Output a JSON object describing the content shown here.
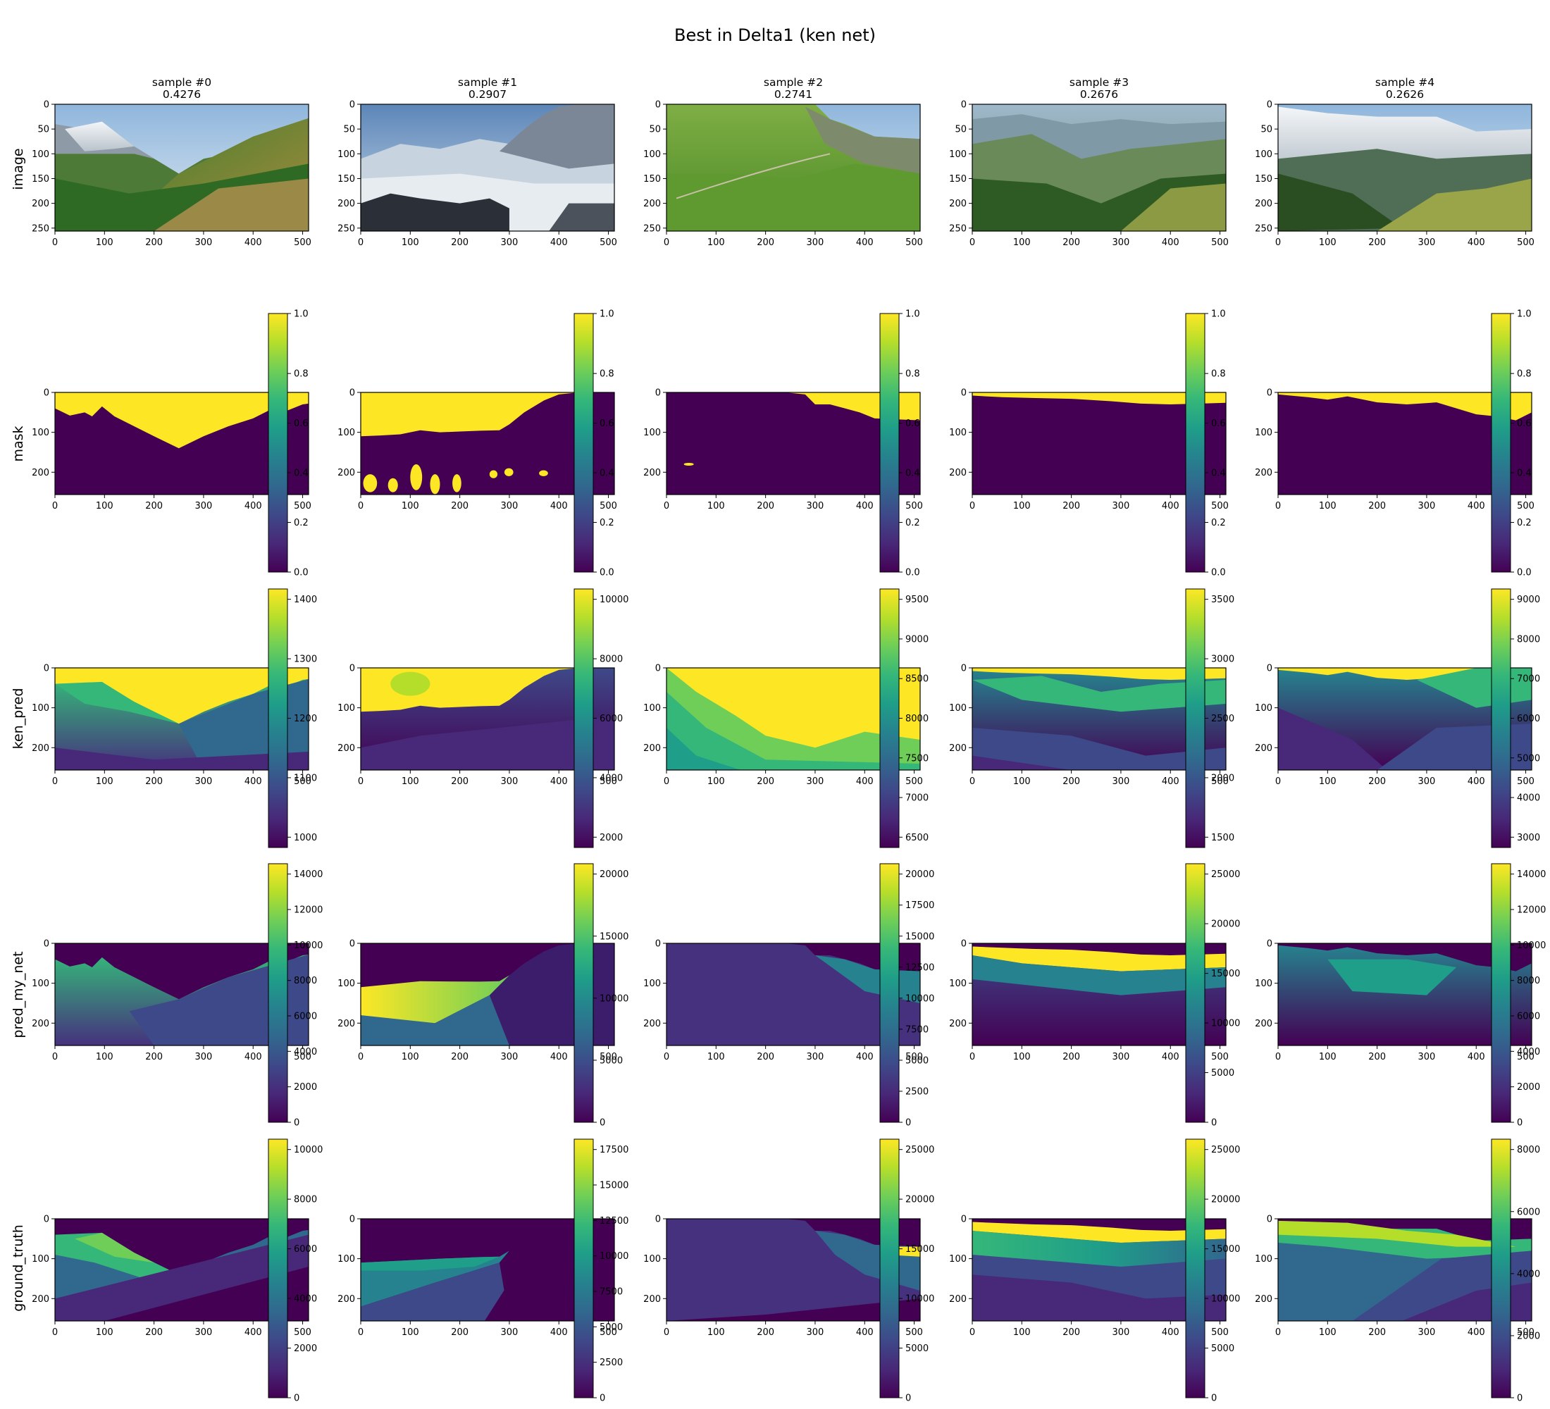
{
  "figure_title": "Best in Delta1 (ken net)",
  "colors": {
    "background": "#ffffff",
    "mask_zero": "#440154",
    "mask_one": "#fde725",
    "viridis": [
      "#440154",
      "#482878",
      "#3e4989",
      "#31688e",
      "#26828e",
      "#1f9e89",
      "#35b779",
      "#6ece58",
      "#b5de2b",
      "#fde725"
    ]
  },
  "chart_data": {
    "type": "heatmap",
    "columns": [
      {
        "title": "sample #0",
        "score": "0.4276"
      },
      {
        "title": "sample #1",
        "score": "0.2907"
      },
      {
        "title": "sample #2",
        "score": "0.2741"
      },
      {
        "title": "sample #3",
        "score": "0.2676"
      },
      {
        "title": "sample #4",
        "score": "0.2626"
      }
    ],
    "rows": [
      {
        "label": "image",
        "colorbar": false,
        "xticks": [
          0,
          100,
          200,
          300,
          400,
          500
        ],
        "yticks": [
          0,
          50,
          100,
          150,
          200,
          250
        ],
        "image_extent": {
          "x": [
            0,
            512
          ],
          "y": [
            0,
            256
          ]
        }
      },
      {
        "label": "mask",
        "colorbar": true,
        "xticks": [
          0,
          100,
          200,
          300,
          400,
          500
        ],
        "yticks": [
          0,
          100,
          200
        ],
        "image_extent": {
          "x": [
            0,
            512
          ],
          "y": [
            0,
            256
          ]
        },
        "color_ranges": [
          [
            0,
            1
          ],
          [
            0,
            1
          ],
          [
            0,
            1
          ],
          [
            0,
            1
          ],
          [
            0,
            1
          ]
        ],
        "colorbar_ticks": [
          [
            "0.0",
            "0.2",
            "0.4",
            "0.6",
            "0.8",
            "1.0"
          ],
          [
            "0.0",
            "0.2",
            "0.4",
            "0.6",
            "0.8",
            "1.0"
          ],
          [
            "0.0",
            "0.2",
            "0.4",
            "0.6",
            "0.8",
            "1.0"
          ],
          [
            "0.0",
            "0.2",
            "0.4",
            "0.6",
            "0.8",
            "1.0"
          ],
          [
            "0.0",
            "0.2",
            "0.4",
            "0.6",
            "0.8",
            "1.0"
          ]
        ]
      },
      {
        "label": "ken_pred",
        "colorbar": true,
        "xticks": [
          0,
          100,
          200,
          300,
          400,
          500
        ],
        "yticks": [
          0,
          100,
          200
        ],
        "image_extent": {
          "x": [
            0,
            512
          ],
          "y": [
            0,
            256
          ]
        },
        "color_ranges": [
          [
            920,
            1445
          ],
          [
            1450,
            10200
          ],
          [
            6050,
            9780
          ],
          [
            1360,
            3720
          ],
          [
            2650,
            9700
          ]
        ],
        "colorbar_ticks": [
          [
            "1000",
            "1100",
            "1200",
            "1300",
            "1400"
          ],
          [
            "2000",
            "4000",
            "6000",
            "8000",
            "10000"
          ],
          [
            "6500",
            "7000",
            "7500",
            "8000",
            "8500",
            "9000",
            "9500"
          ],
          [
            "1500",
            "2000",
            "2500",
            "3000",
            "3500"
          ],
          [
            "3000",
            "4000",
            "5000",
            "6000",
            "7000",
            "8000",
            "9000"
          ]
        ]
      },
      {
        "label": "pred_my_net",
        "colorbar": true,
        "xticks": [
          0,
          100,
          200,
          300,
          400,
          500
        ],
        "yticks": [
          0,
          100,
          200
        ],
        "image_extent": {
          "x": [
            0,
            512
          ],
          "y": [
            0,
            256
          ]
        },
        "color_ranges": [
          [
            0,
            14500
          ],
          [
            0,
            24000
          ],
          [
            0,
            22000
          ],
          [
            0,
            26000
          ],
          [
            0,
            15200
          ]
        ],
        "colorbar_ticks": [
          [
            "0",
            "2000",
            "4000",
            "6000",
            "8000",
            "10000",
            "12000",
            "14000"
          ],
          [
            "0",
            "5000",
            "10000",
            "15000",
            "20000"
          ],
          [
            "0",
            "2500",
            "5000",
            "7500",
            "10000",
            "12500",
            "15000",
            "17500",
            "20000"
          ],
          [
            "0",
            "5000",
            "10000",
            "15000",
            "20000",
            "25000"
          ],
          [
            "0",
            "2000",
            "4000",
            "6000",
            "8000",
            "10000",
            "12000",
            "14000"
          ]
        ]
      },
      {
        "label": "ground_truth",
        "colorbar": true,
        "xticks": [
          0,
          100,
          200,
          300,
          400,
          500
        ],
        "yticks": [
          0,
          100,
          200
        ],
        "image_extent": {
          "x": [
            0,
            512
          ],
          "y": [
            0,
            256
          ]
        },
        "color_ranges": [
          [
            0,
            11100
          ],
          [
            0,
            18100
          ],
          [
            0,
            26000
          ],
          [
            0,
            26000
          ],
          [
            0,
            9400
          ]
        ],
        "colorbar_ticks": [
          [
            "0",
            "2000",
            "4000",
            "6000",
            "8000",
            "10000"
          ],
          [
            "0",
            "2500",
            "5000",
            "7500",
            "10000",
            "12500",
            "15000",
            "17500"
          ],
          [
            "0",
            "5000",
            "10000",
            "15000",
            "20000",
            "25000"
          ],
          [
            "0",
            "5000",
            "10000",
            "15000",
            "20000",
            "25000"
          ],
          [
            "0",
            "2000",
            "4000",
            "6000",
            "8000"
          ]
        ]
      }
    ]
  }
}
